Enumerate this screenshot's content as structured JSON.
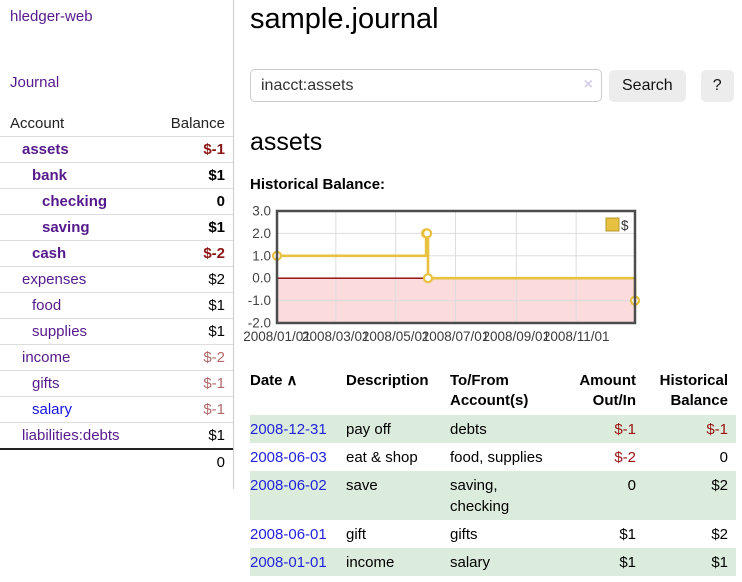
{
  "app": {
    "brand": "hledger-web",
    "nav_journal": "Journal"
  },
  "colors": {
    "link_purple": "#551a8b",
    "link_blue": "#2222dd",
    "negative_strong": "#8b1515",
    "negative_soft": "#b36a6a",
    "register_negative": "#991111",
    "row_stripe_green": "#dcecdc",
    "chart_line_gold": "#e7c13f",
    "chart_negative_region_pink": "#fbdbdb",
    "chart_zero_line_red": "#8b0000"
  },
  "sidebar": {
    "header": {
      "account": "Account",
      "balance": "Balance"
    },
    "accounts": [
      {
        "name": "assets",
        "balance": "$-1",
        "indent": 1,
        "bold": true,
        "link_color": "purple",
        "balance_class": "neg"
      },
      {
        "name": "bank",
        "balance": "$1",
        "indent": 2,
        "bold": true,
        "link_color": "purple",
        "balance_class": ""
      },
      {
        "name": "checking",
        "balance": "0",
        "indent": 3,
        "bold": true,
        "link_color": "purple",
        "balance_class": ""
      },
      {
        "name": "saving",
        "balance": "$1",
        "indent": 3,
        "bold": true,
        "link_color": "purple",
        "balance_class": ""
      },
      {
        "name": "cash",
        "balance": "$-2",
        "indent": 2,
        "bold": true,
        "link_color": "purple",
        "balance_class": "neg"
      },
      {
        "name": "expenses",
        "balance": "$2",
        "indent": 1,
        "bold": false,
        "link_color": "purple",
        "balance_class": ""
      },
      {
        "name": "food",
        "balance": "$1",
        "indent": 2,
        "bold": false,
        "link_color": "purple",
        "balance_class": ""
      },
      {
        "name": "supplies",
        "balance": "$1",
        "indent": 2,
        "bold": false,
        "link_color": "purple",
        "balance_class": ""
      },
      {
        "name": "income",
        "balance": "$-2",
        "indent": 1,
        "bold": false,
        "link_color": "purple",
        "balance_class": "softneg"
      },
      {
        "name": "gifts",
        "balance": "$-1",
        "indent": 2,
        "bold": false,
        "link_color": "purple",
        "balance_class": "softneg"
      },
      {
        "name": "salary",
        "balance": "$-1",
        "indent": 2,
        "bold": false,
        "link_color": "blue",
        "balance_class": "softneg"
      },
      {
        "name": "liabilities:debts",
        "balance": "$1",
        "indent": 1,
        "bold": false,
        "link_color": "purple",
        "balance_class": ""
      }
    ],
    "total": "0"
  },
  "header": {
    "title": "sample.journal"
  },
  "search": {
    "value": "inacct:assets",
    "clear_icon": "×",
    "button": "Search",
    "help_button": "?"
  },
  "main": {
    "account_title": "assets",
    "chart_label": "Historical Balance:"
  },
  "chart_data": {
    "type": "line",
    "title": "Historical Balance:",
    "step": true,
    "series": [
      {
        "name": "$",
        "color": "#e7c13f",
        "points": [
          [
            "2008-01-01",
            1
          ],
          [
            "2008-06-01",
            2
          ],
          [
            "2008-06-02",
            2
          ],
          [
            "2008-06-03",
            0
          ],
          [
            "2008-12-31",
            -1
          ]
        ]
      }
    ],
    "x_range": [
      "2008-01-01",
      "2008-12-31"
    ],
    "x_ticks": [
      "2008/01/01",
      "2008/03/01",
      "2008/05/01",
      "2008/07/01",
      "2008/09/01",
      "2008/11/01"
    ],
    "y_ticks": [
      3.0,
      2.0,
      1.0,
      0.0,
      -1.0,
      -2.0
    ],
    "ylim": [
      -2,
      3
    ],
    "grid": true,
    "negative_region_color": "#fbdbdb",
    "zero_line_color": "#8b0000",
    "legend": {
      "label": "$",
      "position": "top-right"
    }
  },
  "register": {
    "columns": [
      {
        "line1": "Date",
        "line2": "",
        "align": "left",
        "sort_icon": "∧"
      },
      {
        "line1": "Description",
        "line2": "",
        "align": "left"
      },
      {
        "line1": "To/From",
        "line2": "Account(s)",
        "align": "left"
      },
      {
        "line1": "Amount",
        "line2": "Out/In",
        "align": "right"
      },
      {
        "line1": "Historical",
        "line2": "Balance",
        "align": "right"
      }
    ],
    "rows": [
      {
        "date": "2008-12-31",
        "description": "pay off",
        "accounts": "debts",
        "amount": "$-1",
        "amount_neg": true,
        "balance": "$-1",
        "balance_neg": true
      },
      {
        "date": "2008-06-03",
        "description": "eat & shop",
        "accounts": "food, supplies",
        "amount": "$-2",
        "amount_neg": true,
        "balance": "0",
        "balance_neg": false
      },
      {
        "date": "2008-06-02",
        "description": "save",
        "accounts": "saving, checking",
        "amount": "0",
        "amount_neg": false,
        "balance": "$2",
        "balance_neg": false
      },
      {
        "date": "2008-06-01",
        "description": "gift",
        "accounts": "gifts",
        "amount": "$1",
        "amount_neg": false,
        "balance": "$2",
        "balance_neg": false
      },
      {
        "date": "2008-01-01",
        "description": "income",
        "accounts": "salary",
        "amount": "$1",
        "amount_neg": false,
        "balance": "$1",
        "balance_neg": false
      }
    ]
  }
}
